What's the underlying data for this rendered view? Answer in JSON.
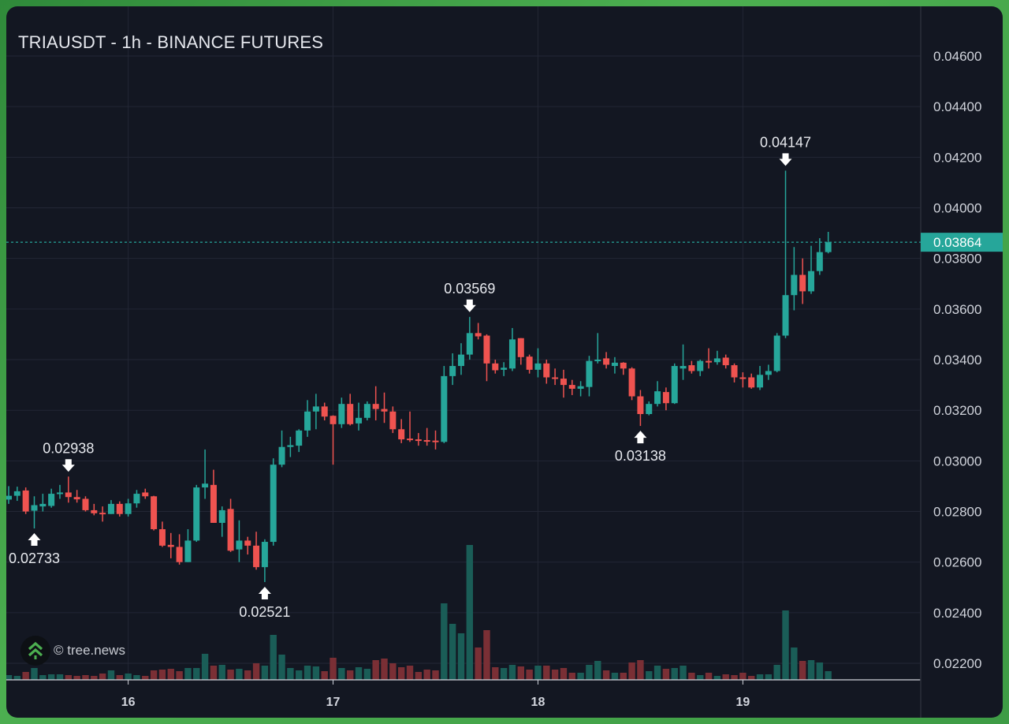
{
  "header": {
    "title": "TRIAUSDT - 1h - BINANCE FUTURES"
  },
  "watermark": {
    "text": "© tree.news",
    "icon": "tree-chevron-logo-icon"
  },
  "colors": {
    "up": "#26a69a",
    "down": "#ef5350",
    "up_volume": "#1a5d57",
    "down_volume": "#7a2f35",
    "background": "#131722",
    "grid": "#232735",
    "frame": "#4caf50"
  },
  "chart_data": {
    "type": "candlestick",
    "title": "TRIAUSDT - 1h - BINANCE FUTURES",
    "ylim": [
      0.0216,
      0.0466
    ],
    "y_ticks": [
      "0.04600",
      "0.04400",
      "0.04200",
      "0.04000",
      "0.03800",
      "0.03600",
      "0.03400",
      "0.03200",
      "0.03000",
      "0.02800",
      "0.02600",
      "0.02400",
      "0.02200"
    ],
    "x_ticks": [
      "16",
      "17",
      "18",
      "19"
    ],
    "grid": true,
    "last_price": {
      "value": 0.03864,
      "label": "0.03864"
    },
    "candles_ohlc": [
      [
        0.02847,
        0.029,
        0.0283,
        0.02862
      ],
      [
        0.02862,
        0.02898,
        0.02842,
        0.0288
      ],
      [
        0.02883,
        0.02895,
        0.0279,
        0.028
      ],
      [
        0.02803,
        0.0286,
        0.02733,
        0.02825
      ],
      [
        0.0282,
        0.0287,
        0.028,
        0.0283
      ],
      [
        0.02822,
        0.0289,
        0.02815,
        0.0287
      ],
      [
        0.0287,
        0.02905,
        0.0285,
        0.02875
      ],
      [
        0.02875,
        0.02938,
        0.02835,
        0.02857
      ],
      [
        0.02857,
        0.02885,
        0.02835,
        0.02848
      ],
      [
        0.0285,
        0.0286,
        0.028,
        0.02805
      ],
      [
        0.02805,
        0.0283,
        0.02785,
        0.02793
      ],
      [
        0.02795,
        0.0282,
        0.0276,
        0.0279
      ],
      [
        0.0279,
        0.02845,
        0.0279,
        0.0283
      ],
      [
        0.0283,
        0.0284,
        0.0278,
        0.0279
      ],
      [
        0.0279,
        0.0285,
        0.0278,
        0.02832
      ],
      [
        0.02832,
        0.02885,
        0.02815,
        0.0287
      ],
      [
        0.02875,
        0.0289,
        0.0285,
        0.0286
      ],
      [
        0.0286,
        0.02862,
        0.02725,
        0.0273
      ],
      [
        0.0273,
        0.0276,
        0.0266,
        0.02665
      ],
      [
        0.02668,
        0.02715,
        0.02615,
        0.0266
      ],
      [
        0.0266,
        0.0271,
        0.0259,
        0.026
      ],
      [
        0.026,
        0.0273,
        0.026,
        0.02685
      ],
      [
        0.02685,
        0.02905,
        0.0268,
        0.02895
      ],
      [
        0.02895,
        0.03045,
        0.0285,
        0.0291
      ],
      [
        0.02905,
        0.02965,
        0.02755,
        0.02755
      ],
      [
        0.02755,
        0.0282,
        0.027,
        0.02805
      ],
      [
        0.0281,
        0.0285,
        0.0264,
        0.02645
      ],
      [
        0.0265,
        0.02765,
        0.026,
        0.02685
      ],
      [
        0.02685,
        0.027,
        0.0263,
        0.02665
      ],
      [
        0.02665,
        0.0272,
        0.0257,
        0.0258
      ],
      [
        0.0258,
        0.0269,
        0.02521,
        0.0268
      ],
      [
        0.0268,
        0.0301,
        0.02665,
        0.02985
      ],
      [
        0.02985,
        0.0312,
        0.02975,
        0.03055
      ],
      [
        0.03055,
        0.03095,
        0.03015,
        0.03062
      ],
      [
        0.0306,
        0.03125,
        0.03035,
        0.0312
      ],
      [
        0.0312,
        0.0324,
        0.03095,
        0.03195
      ],
      [
        0.03195,
        0.03265,
        0.03125,
        0.03215
      ],
      [
        0.03215,
        0.0323,
        0.0316,
        0.03175
      ],
      [
        0.03178,
        0.0318,
        0.02985,
        0.03145
      ],
      [
        0.03145,
        0.0325,
        0.0313,
        0.03225
      ],
      [
        0.03225,
        0.03265,
        0.0314,
        0.03145
      ],
      [
        0.03148,
        0.0323,
        0.0312,
        0.0317
      ],
      [
        0.0317,
        0.03235,
        0.0316,
        0.03225
      ],
      [
        0.03225,
        0.03295,
        0.0316,
        0.03205
      ],
      [
        0.03205,
        0.0327,
        0.0315,
        0.03195
      ],
      [
        0.03195,
        0.03215,
        0.0311,
        0.03125
      ],
      [
        0.03125,
        0.03165,
        0.0307,
        0.03085
      ],
      [
        0.03088,
        0.03195,
        0.03075,
        0.03085
      ],
      [
        0.03085,
        0.0311,
        0.0306,
        0.0308
      ],
      [
        0.03082,
        0.0313,
        0.0306,
        0.03078
      ],
      [
        0.0308,
        0.0312,
        0.03045,
        0.03075
      ],
      [
        0.03075,
        0.03375,
        0.0307,
        0.03335
      ],
      [
        0.03335,
        0.03425,
        0.033,
        0.03375
      ],
      [
        0.03375,
        0.03465,
        0.0334,
        0.0342
      ],
      [
        0.0342,
        0.03569,
        0.034,
        0.03505
      ],
      [
        0.03505,
        0.03545,
        0.0348,
        0.03492
      ],
      [
        0.03495,
        0.035,
        0.03315,
        0.03385
      ],
      [
        0.03385,
        0.034,
        0.03345,
        0.03358
      ],
      [
        0.0336,
        0.0339,
        0.03335,
        0.03368
      ],
      [
        0.03365,
        0.03525,
        0.03355,
        0.0348
      ],
      [
        0.03485,
        0.03485,
        0.0338,
        0.0341
      ],
      [
        0.03412,
        0.0342,
        0.03345,
        0.0336
      ],
      [
        0.0336,
        0.03445,
        0.0333,
        0.03385
      ],
      [
        0.03385,
        0.034,
        0.03305,
        0.0333
      ],
      [
        0.0333,
        0.03365,
        0.033,
        0.03325
      ],
      [
        0.03325,
        0.0336,
        0.0325,
        0.033
      ],
      [
        0.033,
        0.0332,
        0.0326,
        0.03285
      ],
      [
        0.03285,
        0.03315,
        0.03255,
        0.03295
      ],
      [
        0.03292,
        0.03415,
        0.03255,
        0.03395
      ],
      [
        0.03395,
        0.03505,
        0.03385,
        0.034
      ],
      [
        0.03405,
        0.0343,
        0.03365,
        0.0338
      ],
      [
        0.03375,
        0.0341,
        0.03345,
        0.03388
      ],
      [
        0.03388,
        0.0339,
        0.0334,
        0.03365
      ],
      [
        0.03365,
        0.0337,
        0.0324,
        0.03255
      ],
      [
        0.03255,
        0.0328,
        0.03138,
        0.03185
      ],
      [
        0.03185,
        0.03235,
        0.0318,
        0.03225
      ],
      [
        0.03225,
        0.03315,
        0.03215,
        0.03275
      ],
      [
        0.03272,
        0.0329,
        0.032,
        0.03228
      ],
      [
        0.03228,
        0.03385,
        0.03225,
        0.03375
      ],
      [
        0.03365,
        0.0346,
        0.0332,
        0.03375
      ],
      [
        0.03378,
        0.03395,
        0.03345,
        0.03355
      ],
      [
        0.03355,
        0.034,
        0.03335,
        0.03395
      ],
      [
        0.03395,
        0.03445,
        0.03365,
        0.0339
      ],
      [
        0.0339,
        0.03435,
        0.0338,
        0.03405
      ],
      [
        0.03408,
        0.0342,
        0.03365,
        0.03378
      ],
      [
        0.03378,
        0.03385,
        0.0331,
        0.0333
      ],
      [
        0.0333,
        0.0335,
        0.0329,
        0.03325
      ],
      [
        0.0333,
        0.03345,
        0.03285,
        0.0329
      ],
      [
        0.0329,
        0.03375,
        0.0328,
        0.0334
      ],
      [
        0.0334,
        0.0338,
        0.0332,
        0.03355
      ],
      [
        0.03355,
        0.03505,
        0.0335,
        0.03495
      ],
      [
        0.03495,
        0.04147,
        0.03485,
        0.03655
      ],
      [
        0.03655,
        0.03845,
        0.03595,
        0.03735
      ],
      [
        0.03735,
        0.038,
        0.0362,
        0.0367
      ],
      [
        0.0367,
        0.0385,
        0.0366,
        0.0375
      ],
      [
        0.0375,
        0.0388,
        0.03735,
        0.03825
      ],
      [
        0.03825,
        0.03905,
        0.0382,
        0.03864
      ]
    ],
    "volume_relative": [
      6,
      5,
      10,
      15,
      6,
      7,
      7,
      6,
      5,
      6,
      5,
      8,
      12,
      6,
      8,
      6,
      5,
      12,
      13,
      14,
      11,
      15,
      15,
      33,
      18,
      19,
      13,
      14,
      12,
      21,
      18,
      57,
      32,
      15,
      12,
      18,
      17,
      11,
      28,
      15,
      12,
      16,
      14,
      25,
      27,
      21,
      16,
      18,
      10,
      13,
      12,
      97,
      71,
      59,
      171,
      41,
      63,
      16,
      15,
      19,
      17,
      13,
      18,
      18,
      13,
      15,
      9,
      9,
      19,
      24,
      12,
      9,
      9,
      22,
      25,
      11,
      18,
      14,
      15,
      18,
      9,
      6,
      9,
      5,
      7,
      6,
      9,
      5,
      7,
      7,
      19,
      88,
      41,
      24,
      25,
      22,
      11
    ],
    "annotations": [
      {
        "label": "0.02938",
        "candle": 7,
        "position": "above",
        "kind": "high"
      },
      {
        "label": "0.02733",
        "candle": 3,
        "position": "below",
        "kind": "low"
      },
      {
        "label": "0.02521",
        "candle": 30,
        "position": "below",
        "kind": "low"
      },
      {
        "label": "0.03569",
        "candle": 54,
        "position": "above",
        "kind": "high"
      },
      {
        "label": "0.03138",
        "candle": 74,
        "position": "below",
        "kind": "low"
      },
      {
        "label": "0.04147",
        "candle": 91,
        "position": "above",
        "kind": "high"
      }
    ]
  }
}
